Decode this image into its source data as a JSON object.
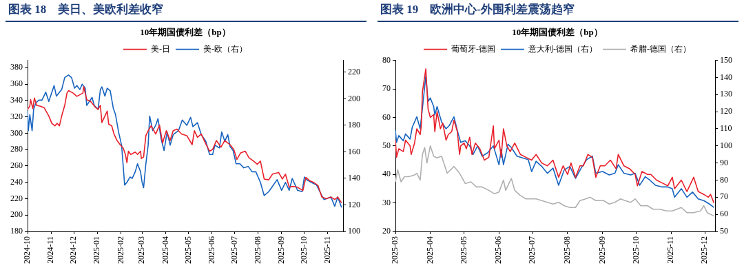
{
  "chart_data": [
    {
      "type": "line",
      "title": "图表 18　美日、美欧利差收窄",
      "subtitle": "10年期国债利差（bp）",
      "legend": "top",
      "marker": "none",
      "xlim": [
        "2024-10-01",
        "2025-11-21"
      ],
      "xticks": [
        {
          "value": "2024-10-01",
          "label": "2024-10"
        },
        {
          "value": "2024-11-01",
          "label": "2024-11"
        },
        {
          "value": "2024-12-01",
          "label": "2024-12"
        },
        {
          "value": "2025-01-01",
          "label": "2025-01"
        },
        {
          "value": "2025-02-01",
          "label": "2025-02"
        },
        {
          "value": "2025-03-01",
          "label": "2025-03"
        },
        {
          "value": "2025-04-01",
          "label": "2025-04"
        },
        {
          "value": "2025-05-01",
          "label": "2025-05"
        },
        {
          "value": "2025-06-01",
          "label": "2025-06"
        },
        {
          "value": "2025-07-01",
          "label": "2025-07"
        },
        {
          "value": "2025-08-01",
          "label": "2025-08"
        },
        {
          "value": "2025-09-01",
          "label": "2025-09"
        },
        {
          "value": "2025-10-01",
          "label": "2025-10"
        },
        {
          "value": "2025-11-01",
          "label": "2025-11"
        }
      ],
      "ylim": [
        180,
        389
      ],
      "yticks": [
        180,
        200,
        220,
        240,
        260,
        280,
        300,
        320,
        340,
        360,
        380
      ],
      "y2lim": [
        100,
        229
      ],
      "y2ticks": [
        100,
        120,
        140,
        160,
        180,
        200,
        220
      ],
      "series": [
        {
          "name": "美-日",
          "color": "#e8202a",
          "x": [
            "2024-10-01",
            "2024-10-04",
            "2024-10-05",
            "2024-10-08",
            "2024-10-10",
            "2024-10-13",
            "2024-10-18",
            "2024-10-23",
            "2024-10-29",
            "2024-11-02",
            "2024-11-06",
            "2024-11-09",
            "2024-11-12",
            "2024-11-15",
            "2024-11-19",
            "2024-11-22",
            "2024-11-24",
            "2024-11-30",
            "2024-12-05",
            "2024-12-13",
            "2024-12-14",
            "2024-12-18",
            "2024-12-23",
            "2024-12-29",
            "2025-01-02",
            "2025-01-05",
            "2025-01-07",
            "2025-01-11",
            "2025-01-14",
            "2025-01-16",
            "2025-01-20",
            "2025-01-23",
            "2025-01-27",
            "2025-01-31",
            "2025-02-04",
            "2025-02-07",
            "2025-02-09",
            "2025-02-11",
            "2025-02-14",
            "2025-02-20",
            "2025-02-23",
            "2025-02-27",
            "2025-02-28",
            "2025-03-03",
            "2025-03-06",
            "2025-03-09",
            "2025-03-13",
            "2025-03-19",
            "2025-03-24",
            "2025-03-28",
            "2025-04-02",
            "2025-04-07",
            "2025-04-11",
            "2025-04-16",
            "2025-04-22",
            "2025-04-29",
            "2025-05-06",
            "2025-05-09",
            "2025-05-13",
            "2025-05-18",
            "2025-05-24",
            "2025-05-29",
            "2025-06-02",
            "2025-06-07",
            "2025-06-13",
            "2025-06-18",
            "2025-06-25",
            "2025-06-30",
            "2025-07-04",
            "2025-07-09",
            "2025-07-15",
            "2025-07-20",
            "2025-07-26",
            "2025-07-31",
            "2025-08-04",
            "2025-08-09",
            "2025-08-15",
            "2025-08-20",
            "2025-08-28",
            "2025-09-02",
            "2025-09-06",
            "2025-09-11",
            "2025-09-16",
            "2025-09-22",
            "2025-09-29",
            "2025-10-03",
            "2025-10-08",
            "2025-10-13",
            "2025-10-19",
            "2025-10-24",
            "2025-10-30",
            "2025-11-05",
            "2025-11-10",
            "2025-11-14",
            "2025-11-19"
          ],
          "values": [
            329,
            333,
            341,
            330,
            343,
            334,
            333,
            331,
            321,
            312,
            309,
            312,
            309,
            321,
            334,
            349,
            352,
            349,
            345,
            349,
            357,
            341,
            339,
            332,
            329,
            334,
            313,
            321,
            327,
            311,
            309,
            299,
            291,
            286,
            282,
            274,
            264,
            278,
            274,
            277,
            274,
            278,
            269,
            271,
            297,
            303,
            309,
            299,
            310,
            288,
            303,
            291,
            303,
            305,
            299,
            297,
            286,
            303,
            295,
            299,
            287,
            278,
            280,
            291,
            283,
            291,
            286,
            280,
            268,
            276,
            278,
            270,
            266,
            262,
            266,
            244,
            243,
            250,
            252,
            244,
            250,
            234,
            235,
            234,
            230,
            246,
            242,
            240,
            236,
            222,
            220,
            222,
            219,
            222,
            215
          ]
        },
        {
          "name": "美-欧（右）",
          "color": "#1764c0",
          "axis": "y2",
          "x": [
            "2024-10-01",
            "2024-10-02",
            "2024-10-04",
            "2024-10-07",
            "2024-10-09",
            "2024-10-12",
            "2024-10-16",
            "2024-10-20",
            "2024-10-25",
            "2024-10-29",
            "2024-11-05",
            "2024-11-08",
            "2024-11-15",
            "2024-11-19",
            "2024-11-24",
            "2024-11-28",
            "2024-12-02",
            "2024-12-05",
            "2024-12-09",
            "2024-12-12",
            "2024-12-16",
            "2024-12-18",
            "2024-12-25",
            "2024-12-28",
            "2025-01-02",
            "2025-01-05",
            "2025-01-07",
            "2025-01-11",
            "2025-01-14",
            "2025-01-18",
            "2025-01-22",
            "2025-01-25",
            "2025-01-29",
            "2025-02-02",
            "2025-02-06",
            "2025-02-09",
            "2025-02-13",
            "2025-02-16",
            "2025-02-20",
            "2025-02-23",
            "2025-02-27",
            "2025-03-01",
            "2025-03-03",
            "2025-03-06",
            "2025-03-09",
            "2025-03-11",
            "2025-03-15",
            "2025-03-19",
            "2025-03-22",
            "2025-03-26",
            "2025-03-30",
            "2025-04-03",
            "2025-04-07",
            "2025-04-11",
            "2025-04-18",
            "2025-04-23",
            "2025-04-29",
            "2025-05-04",
            "2025-05-07",
            "2025-05-13",
            "2025-05-18",
            "2025-05-24",
            "2025-05-29",
            "2025-06-02",
            "2025-06-05",
            "2025-06-11",
            "2025-06-14",
            "2025-06-18",
            "2025-06-22",
            "2025-06-25",
            "2025-06-29",
            "2025-07-03",
            "2025-07-08",
            "2025-07-13",
            "2025-07-19",
            "2025-07-24",
            "2025-07-29",
            "2025-08-04",
            "2025-08-09",
            "2025-08-15",
            "2025-08-20",
            "2025-08-26",
            "2025-09-01",
            "2025-09-06",
            "2025-09-11",
            "2025-09-15",
            "2025-09-22",
            "2025-09-28",
            "2025-10-01",
            "2025-10-04",
            "2025-10-10",
            "2025-10-17",
            "2025-10-24",
            "2025-10-27",
            "2025-11-05",
            "2025-11-10",
            "2025-11-14",
            "2025-11-19"
          ],
          "values": [
            191,
            176,
            188,
            176,
            192,
            197,
            199,
            199,
            205,
            198,
            210,
            202,
            207,
            216,
            218,
            216,
            208,
            210,
            207,
            211,
            208,
            195,
            201,
            195,
            192,
            207,
            209,
            202,
            208,
            206,
            193,
            188,
            175,
            165,
            135,
            137,
            141,
            140,
            145,
            151,
            145,
            137,
            133,
            151,
            165,
            187,
            176,
            180,
            185,
            170,
            161,
            175,
            165,
            173,
            176,
            184,
            180,
            186,
            179,
            182,
            173,
            168,
            158,
            158,
            165,
            163,
            175,
            168,
            173,
            164,
            161,
            151,
            151,
            148,
            149,
            145,
            145,
            137,
            127,
            130,
            134,
            139,
            131,
            137,
            131,
            140,
            131,
            130,
            141,
            139,
            137,
            135,
            127,
            124,
            126,
            119,
            126,
            118
          ]
        }
      ]
    },
    {
      "type": "line",
      "title": "图表 19　欧洲中心-外围利差震荡趋窄",
      "subtitle": "10年期国债利差（bp）",
      "legend": "top",
      "marker": "none",
      "xlim": [
        "2025-03-01",
        "2025-12-10"
      ],
      "xticks": [
        {
          "value": "2025-03-01",
          "label": "2025-03"
        },
        {
          "value": "2025-04-01",
          "label": "2025-04"
        },
        {
          "value": "2025-05-01",
          "label": "2025-05"
        },
        {
          "value": "2025-06-01",
          "label": "2025-06"
        },
        {
          "value": "2025-07-01",
          "label": "2025-07"
        },
        {
          "value": "2025-08-01",
          "label": "2025-08"
        },
        {
          "value": "2025-09-01",
          "label": "2025-09"
        },
        {
          "value": "2025-10-01",
          "label": "2025-10"
        },
        {
          "value": "2025-11-01",
          "label": "2025-11"
        },
        {
          "value": "2025-12-01",
          "label": "2025-12"
        }
      ],
      "ylim": [
        20,
        80
      ],
      "yticks": [
        20,
        30,
        40,
        50,
        60,
        70,
        80
      ],
      "y2lim": [
        50,
        150
      ],
      "y2ticks": [
        50,
        60,
        70,
        80,
        90,
        100,
        110,
        120,
        130,
        140,
        150
      ],
      "series": [
        {
          "name": "葡萄牙-德国",
          "color": "#e8202a",
          "x": [
            "2025-03-01",
            "2025-03-02",
            "2025-03-04",
            "2025-03-08",
            "2025-03-10",
            "2025-03-14",
            "2025-03-15",
            "2025-03-18",
            "2025-03-20",
            "2025-03-23",
            "2025-03-24",
            "2025-03-25",
            "2025-03-28",
            "2025-03-30",
            "2025-04-01",
            "2025-04-04",
            "2025-04-05",
            "2025-04-07",
            "2025-04-10",
            "2025-04-12",
            "2025-04-15",
            "2025-04-17",
            "2025-04-20",
            "2025-04-22",
            "2025-04-25",
            "2025-04-27",
            "2025-04-28",
            "2025-05-01",
            "2025-05-03",
            "2025-05-06",
            "2025-05-08",
            "2025-05-11",
            "2025-05-15",
            "2025-05-17",
            "2025-05-19",
            "2025-05-23",
            "2025-05-27",
            "2025-05-28",
            "2025-06-01",
            "2025-06-03",
            "2025-06-05",
            "2025-06-08",
            "2025-06-11",
            "2025-06-15",
            "2025-06-20",
            "2025-06-25",
            "2025-06-30",
            "2025-07-04",
            "2025-07-09",
            "2025-07-14",
            "2025-07-19",
            "2025-07-24",
            "2025-07-28",
            "2025-08-01",
            "2025-08-04",
            "2025-08-08",
            "2025-08-12",
            "2025-08-15",
            "2025-08-19",
            "2025-08-23",
            "2025-08-26",
            "2025-08-30",
            "2025-09-03",
            "2025-09-08",
            "2025-09-13",
            "2025-09-15",
            "2025-09-20",
            "2025-09-25",
            "2025-09-30",
            "2025-10-02",
            "2025-10-06",
            "2025-10-11",
            "2025-10-14",
            "2025-10-19",
            "2025-10-24",
            "2025-10-29",
            "2025-11-02",
            "2025-11-04",
            "2025-11-10",
            "2025-11-15",
            "2025-11-21",
            "2025-11-25",
            "2025-11-30",
            "2025-12-04",
            "2025-12-06",
            "2025-12-09"
          ],
          "values": [
            52,
            46,
            49,
            48,
            52,
            50,
            47,
            51,
            56,
            54,
            57,
            69,
            77,
            63,
            60,
            61,
            55,
            62,
            56,
            58,
            52,
            54,
            55,
            59,
            55,
            47,
            50,
            51,
            49,
            53,
            47,
            51,
            49,
            47,
            45,
            46,
            57,
            49,
            52,
            46,
            56,
            50,
            48,
            51,
            47,
            46,
            45,
            47,
            44,
            43,
            45,
            39,
            43,
            40,
            44,
            39,
            43,
            43,
            47,
            46,
            39,
            43,
            43,
            45,
            42,
            47,
            43,
            42,
            40,
            36,
            41,
            40,
            40,
            38,
            37,
            36,
            39,
            35,
            38,
            34,
            39,
            34,
            33,
            32,
            33,
            30
          ]
        },
        {
          "name": "意大利-德国（右）",
          "color": "#1764c0",
          "axis": "y2",
          "x": [
            "2025-03-01",
            "2025-03-02",
            "2025-03-04",
            "2025-03-08",
            "2025-03-10",
            "2025-03-14",
            "2025-03-16",
            "2025-03-20",
            "2025-03-23",
            "2025-03-25",
            "2025-03-28",
            "2025-03-30",
            "2025-04-01",
            "2025-04-04",
            "2025-04-05",
            "2025-04-07",
            "2025-04-11",
            "2025-04-15",
            "2025-04-18",
            "2025-04-22",
            "2025-04-25",
            "2025-04-28",
            "2025-05-02",
            "2025-05-06",
            "2025-05-09",
            "2025-05-13",
            "2025-05-17",
            "2025-05-22",
            "2025-05-27",
            "2025-06-01",
            "2025-06-03",
            "2025-06-05",
            "2025-06-09",
            "2025-06-12",
            "2025-06-17",
            "2025-06-22",
            "2025-06-27",
            "2025-06-30",
            "2025-07-04",
            "2025-07-09",
            "2025-07-14",
            "2025-07-19",
            "2025-07-24",
            "2025-07-29",
            "2025-08-03",
            "2025-08-08",
            "2025-08-13",
            "2025-08-18",
            "2025-08-23",
            "2025-08-26",
            "2025-09-01",
            "2025-09-07",
            "2025-09-12",
            "2025-09-15",
            "2025-09-20",
            "2025-09-26",
            "2025-09-30",
            "2025-10-04",
            "2025-10-09",
            "2025-10-13",
            "2025-10-18",
            "2025-10-24",
            "2025-10-29",
            "2025-11-02",
            "2025-11-04",
            "2025-11-10",
            "2025-11-15",
            "2025-11-20",
            "2025-11-25",
            "2025-11-30",
            "2025-12-05",
            "2025-12-09"
          ],
          "values": [
            109,
            102,
            106,
            103,
            107,
            104,
            111,
            117,
            110,
            122,
            141,
            126,
            128,
            123,
            118,
            123,
            114,
            110,
            112,
            117,
            109,
            102,
            103,
            100,
            95,
            100,
            94,
            96,
            100,
            89,
            98,
            89,
            101,
            99,
            94,
            93,
            92,
            85,
            91,
            88,
            84,
            87,
            77,
            86,
            88,
            81,
            87,
            92,
            94,
            84,
            85,
            83,
            84,
            89,
            84,
            83,
            84,
            77,
            82,
            80,
            77,
            76,
            76,
            75,
            70,
            75,
            70,
            73,
            69,
            68,
            66,
            64
          ]
        },
        {
          "name": "希腊-德国（右）",
          "color": "#b0b0b0",
          "axis": "y2",
          "x": [
            "2025-03-01",
            "2025-03-03",
            "2025-03-06",
            "2025-03-09",
            "2025-03-13",
            "2025-03-18",
            "2025-03-20",
            "2025-03-23",
            "2025-03-25",
            "2025-03-27",
            "2025-03-29",
            "2025-04-01",
            "2025-04-04",
            "2025-04-07",
            "2025-04-11",
            "2025-04-16",
            "2025-04-22",
            "2025-04-27",
            "2025-05-02",
            "2025-05-07",
            "2025-05-12",
            "2025-05-17",
            "2025-05-23",
            "2025-05-28",
            "2025-06-01",
            "2025-06-05",
            "2025-06-07",
            "2025-06-12",
            "2025-06-15",
            "2025-06-20",
            "2025-06-25",
            "2025-06-30",
            "2025-07-04",
            "2025-07-09",
            "2025-07-14",
            "2025-07-19",
            "2025-07-24",
            "2025-07-29",
            "2025-08-03",
            "2025-08-08",
            "2025-08-12",
            "2025-08-17",
            "2025-08-21",
            "2025-08-26",
            "2025-09-02",
            "2025-09-07",
            "2025-09-12",
            "2025-09-17",
            "2025-09-21",
            "2025-09-26",
            "2025-09-30",
            "2025-10-05",
            "2025-10-11",
            "2025-10-16",
            "2025-10-22",
            "2025-10-28",
            "2025-11-02",
            "2025-11-10",
            "2025-11-15",
            "2025-11-21",
            "2025-11-27",
            "2025-11-30",
            "2025-12-03",
            "2025-12-09"
          ],
          "values": [
            79,
            86,
            79,
            82,
            82,
            83,
            84,
            80,
            95,
            99,
            90,
            100,
            94,
            93,
            94,
            84,
            88,
            84,
            78,
            79,
            76,
            76,
            74,
            72,
            73,
            80,
            74,
            81,
            74,
            71,
            69,
            69,
            69,
            68,
            67,
            66,
            67,
            65,
            64,
            64,
            68,
            69,
            70,
            68,
            68,
            66,
            67,
            69,
            68,
            67,
            69,
            65,
            65,
            63,
            63,
            62,
            62,
            64,
            61,
            61,
            62,
            65,
            61,
            59
          ]
        }
      ]
    }
  ]
}
